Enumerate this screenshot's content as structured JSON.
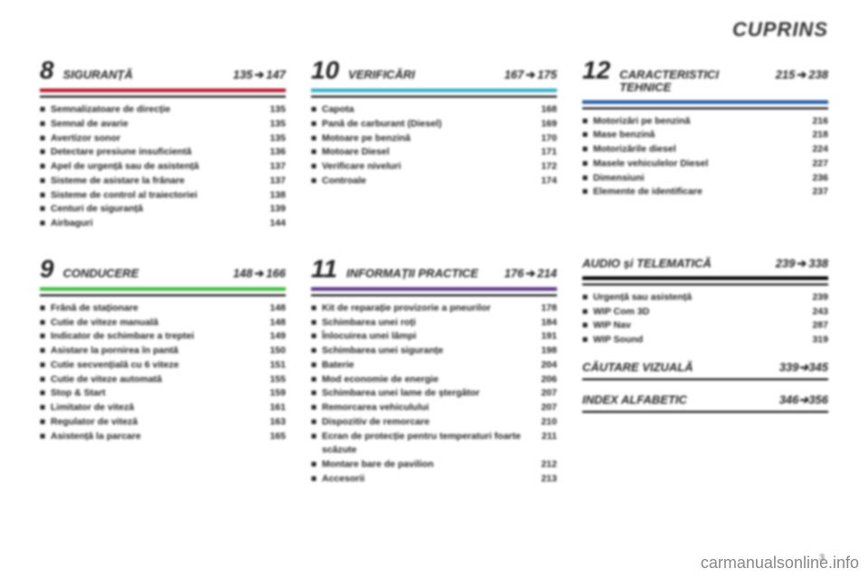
{
  "header": "CUPRINS",
  "arrow_glyph": "➔",
  "sections": {
    "s8": {
      "num": "8",
      "title": "SIGURANȚĂ",
      "from": "135",
      "to": "147",
      "accent": "#b9142c",
      "items": [
        {
          "label": "Semnalizatoare de direcție",
          "pg": "135"
        },
        {
          "label": "Semnal de avarie",
          "pg": "135"
        },
        {
          "label": "Avertizor sonor",
          "pg": "135"
        },
        {
          "label": "Detectare presiune insuficientă",
          "pg": "136"
        },
        {
          "label": "Apel de urgență sau de asistență",
          "pg": "137"
        },
        {
          "label": "Sisteme de asistare la frânare",
          "pg": "137"
        },
        {
          "label": "Sisteme de control al traiectoriei",
          "pg": "138"
        },
        {
          "label": "Centuri de siguranță",
          "pg": "139"
        },
        {
          "label": "Airbaguri",
          "pg": "144"
        }
      ]
    },
    "s10": {
      "num": "10",
      "title": "VERIFICĂRI",
      "from": "167",
      "to": "175",
      "accent": "#2fb0c9",
      "items": [
        {
          "label": "Capota",
          "pg": "168"
        },
        {
          "label": "Pană de carburant (Diesel)",
          "pg": "169"
        },
        {
          "label": "Motoare pe benzină",
          "pg": "170"
        },
        {
          "label": "Motoare Diesel",
          "pg": "171"
        },
        {
          "label": "Verificare niveluri",
          "pg": "172"
        },
        {
          "label": "Controale",
          "pg": "174"
        }
      ]
    },
    "s12": {
      "num": "12",
      "title": "CARACTERISTICI TEHNICE",
      "from": "215",
      "to": "238",
      "accent": "#1f5aa6",
      "items": [
        {
          "label": "Motorizări pe benzină",
          "pg": "216"
        },
        {
          "label": "Mase benzină",
          "pg": "218"
        },
        {
          "label": "Motorizările diesel",
          "pg": "224"
        },
        {
          "label": "Masele vehiculelor Diesel",
          "pg": "227"
        },
        {
          "label": "Dimensiuni",
          "pg": "236"
        },
        {
          "label": "Elemente de identificare",
          "pg": "237"
        }
      ]
    },
    "s9": {
      "num": "9",
      "title": "CONDUCERE",
      "from": "148",
      "to": "166",
      "accent": "#3bbf3b",
      "items": [
        {
          "label": "Frână de staționare",
          "pg": "148"
        },
        {
          "label": "Cutie de viteze manuală",
          "pg": "148"
        },
        {
          "label": "Indicator de schimbare a treptei",
          "pg": "149"
        },
        {
          "label": "Asistare la pornirea în pantă",
          "pg": "150"
        },
        {
          "label": "Cutie secvențială cu 6 viteze",
          "pg": "151"
        },
        {
          "label": "Cutie de viteze automată",
          "pg": "155"
        },
        {
          "label": "Stop & Start",
          "pg": "159"
        },
        {
          "label": "Limitator de viteză",
          "pg": "161"
        },
        {
          "label": "Regulator de viteză",
          "pg": "163"
        },
        {
          "label": "Asistență la parcare",
          "pg": "165"
        }
      ]
    },
    "s11": {
      "num": "11",
      "title": "INFORMAȚII PRACTICE",
      "from": "176",
      "to": "214",
      "accent": "#5c348a",
      "items": [
        {
          "label": "Kit de reparație provizorie a pneurilor",
          "pg": "178"
        },
        {
          "label": "Schimbarea unei roți",
          "pg": "184"
        },
        {
          "label": "Înlocuirea unei lămpi",
          "pg": "191"
        },
        {
          "label": "Schimbarea unei siguranțe",
          "pg": "198"
        },
        {
          "label": "Baterie",
          "pg": "204"
        },
        {
          "label": "Mod economie de energie",
          "pg": "206"
        },
        {
          "label": "Schimbarea unei lame de ștergător",
          "pg": "207"
        },
        {
          "label": "Remorcarea vehiculului",
          "pg": "207"
        },
        {
          "label": "Dispozitiv de remorcare",
          "pg": "210"
        },
        {
          "label": "Ecran de protecție pentru temperaturi foarte scăzute",
          "pg": "211"
        },
        {
          "label": "Montare bare de pavilion",
          "pg": "212"
        },
        {
          "label": "Accesorii",
          "pg": "213"
        }
      ]
    },
    "audio": {
      "title": "AUDIO și TELEMATICĂ",
      "from": "239",
      "to": "338",
      "accent": "#000000",
      "items": [
        {
          "label": "Urgență sau asistență",
          "pg": "239"
        },
        {
          "label": "WIP Com 3D",
          "pg": "243"
        },
        {
          "label": "WIP Nav",
          "pg": "287"
        },
        {
          "label": "WIP Sound",
          "pg": "319"
        }
      ]
    },
    "visual": {
      "title": "CĂUTARE VIZUALĂ",
      "from": "339",
      "to": "345"
    },
    "index": {
      "title": "INDEX ALFABETIC",
      "from": "346",
      "to": "356"
    }
  },
  "watermark": "carmanualsonline.info",
  "pagenum": "3"
}
